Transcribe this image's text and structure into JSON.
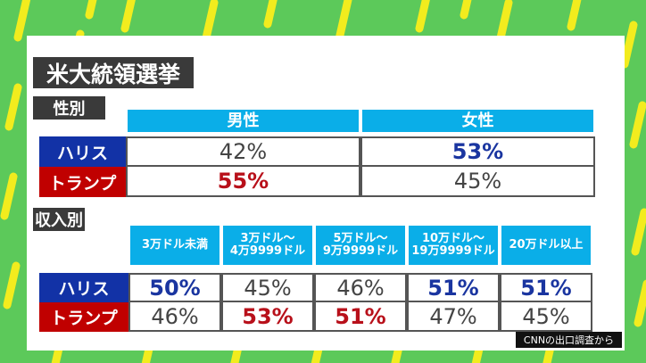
{
  "title": "米大統領選挙",
  "colors": {
    "background": "#5cc95a",
    "stripe": "#f2ec1e",
    "harris": "#1232a6",
    "trump": "#c00000",
    "header": "#0aaee8",
    "win_harris_text": "#1a35a0",
    "win_trump_text": "#b8101a"
  },
  "source": "CNNの出口調査から",
  "chart_data": [
    {
      "type": "table",
      "title": "性別",
      "columns": [
        "男性",
        "女性"
      ],
      "rows": [
        {
          "name": "ハリス",
          "values": [
            "42%",
            "53%"
          ],
          "highlight": [
            false,
            true
          ]
        },
        {
          "name": "トランプ",
          "values": [
            "55%",
            "45%"
          ],
          "highlight": [
            true,
            false
          ]
        }
      ]
    },
    {
      "type": "table",
      "title": "収入別",
      "columns": [
        "3万ドル未満",
        "3万ドル～\n4万9999ドル",
        "5万ドル～\n9万9999ドル",
        "10万ドル～\n19万9999ドル",
        "20万ドル以上"
      ],
      "rows": [
        {
          "name": "ハリス",
          "values": [
            "50%",
            "45%",
            "46%",
            "51%",
            "51%"
          ],
          "highlight": [
            true,
            false,
            false,
            true,
            true
          ]
        },
        {
          "name": "トランプ",
          "values": [
            "46%",
            "53%",
            "51%",
            "47%",
            "45%"
          ],
          "highlight": [
            false,
            true,
            true,
            false,
            false
          ]
        }
      ]
    }
  ]
}
